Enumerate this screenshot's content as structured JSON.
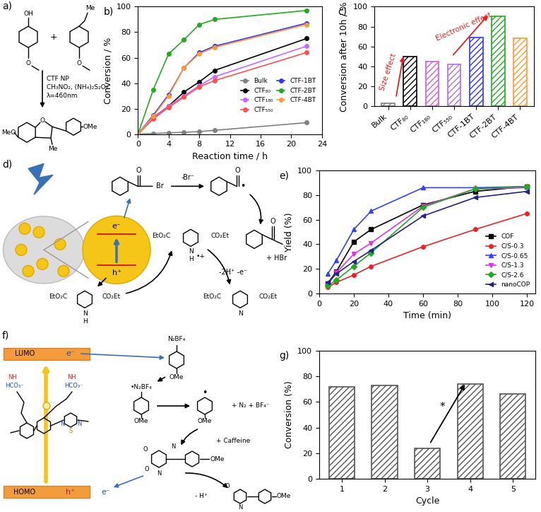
{
  "schemes": {
    "a": {
      "label": "a)",
      "texts": [
        "OH",
        "O",
        "+",
        "Me",
        "O",
        "CTF NP",
        "CH₃NO₂, (NH₄)₂S₂O₈",
        "λ=460nm",
        "MeO",
        "O",
        "OMe",
        "Me"
      ]
    },
    "d": {
      "label": "d)",
      "texts": [
        "O",
        "Br",
        "-Br⁻",
        "O",
        "•",
        "O",
        "+ HBr",
        "e⁻",
        "h⁺",
        "EtO₂C",
        "CO₂Et",
        "N",
        "H",
        "EtO₂C",
        "CO₂Et",
        "N",
        "H",
        "•+",
        "-2H⁺ -e⁻",
        "EtO₂C",
        "CO₂Et",
        "N"
      ]
    },
    "f": {
      "label": "f)",
      "texts": [
        "LUMO",
        "e⁻",
        "HOMO",
        "h⁺",
        "e⁻",
        "N",
        "S",
        "N",
        "NH",
        "HCO₃⁻",
        "NH",
        "HCO₃⁻",
        "N₂BF₄",
        "OMe",
        "•N₂BF₄",
        "OMe",
        "•",
        "OMe",
        "+ N₂ + BF₄⁻",
        "+ Caffeine",
        "O",
        "N",
        "N",
        "O",
        "OMe",
        "- H⁺",
        "O",
        "N",
        "OMe"
      ]
    }
  },
  "chart_data": [
    {
      "type": "line",
      "title": "b)",
      "x_label": "Reaction time / h",
      "y_label": "Conversion / %",
      "x": [
        0,
        2,
        4,
        6,
        8,
        10,
        22
      ],
      "xlim": [
        0,
        24
      ],
      "xticks": [
        0,
        4,
        8,
        12,
        16,
        20,
        24
      ],
      "ylim": [
        0,
        100
      ],
      "yticks": [
        0,
        20,
        40,
        60,
        80,
        100
      ],
      "legend": "lower right",
      "series": [
        {
          "name": "Bulk",
          "color": "#808080",
          "marker": "circle",
          "line_style": "solid",
          "values": [
            0,
            0.5,
            1,
            1.5,
            2,
            3,
            9
          ]
        },
        {
          "name": "CTF₈₀",
          "color": "#000000",
          "marker": "circle",
          "line_style": "solid",
          "values": [
            0,
            13,
            22,
            33,
            41,
            50,
            75
          ]
        },
        {
          "name": "CTF₁₈₀",
          "color": "#cc66ff",
          "marker": "circle",
          "line_style": "solid",
          "values": [
            0,
            13,
            22,
            30,
            38,
            45,
            69
          ]
        },
        {
          "name": "CTF₅₅₀",
          "color": "#ff5050",
          "marker": "circle",
          "line_style": "solid",
          "values": [
            0,
            12,
            21,
            29,
            37,
            42,
            64
          ]
        },
        {
          "name": "CTF-1BT",
          "color": "#3333ff",
          "marker": "circle",
          "line_style": "solid",
          "values": [
            0,
            15,
            31,
            52,
            64,
            69,
            87
          ]
        },
        {
          "name": "CTF-2BT",
          "color": "#22aa22",
          "marker": "circle",
          "line_style": "solid",
          "values": [
            0,
            35,
            63,
            74,
            86,
            90,
            97
          ]
        },
        {
          "name": "CTF-4BT",
          "color": "#ff9933",
          "marker": "circle",
          "line_style": "solid",
          "values": [
            0,
            14,
            30,
            52,
            63,
            68,
            86
          ]
        }
      ]
    },
    {
      "type": "bar",
      "title": "c)",
      "y_label": "Conversion after 10h / %",
      "categories": [
        "Bulk",
        "CTF₈₀",
        "CTF₁₈₀",
        "CTF₅₅₀",
        "CTF-1BT",
        "CTF-2BT",
        "CTF-4BT"
      ],
      "values": [
        3,
        50,
        45,
        42,
        69,
        90,
        68
      ],
      "colors": [
        "#808080",
        "#000000",
        "#d060d0",
        "#b070e0",
        "#3333ff",
        "#22aa22",
        "#ff9933"
      ],
      "ylim": [
        0,
        100
      ],
      "yticks": [
        0,
        20,
        40,
        60,
        80,
        100
      ],
      "annotations": [
        "Size effect",
        "Electronic effect"
      ]
    },
    {
      "type": "line",
      "title": "e)",
      "x_label": "Time (min)",
      "y_label": "Yield (%)",
      "x": [
        5,
        10,
        20,
        30,
        60,
        90,
        120
      ],
      "xlim": [
        0,
        125
      ],
      "xticks": [
        0,
        20,
        40,
        60,
        80,
        100,
        120
      ],
      "ylim": [
        0,
        100
      ],
      "yticks": [
        0,
        20,
        40,
        60,
        80,
        100
      ],
      "legend": "lower right",
      "series": [
        {
          "name": "COF",
          "color": "#000000",
          "marker": "square",
          "line_style": "solid",
          "values": [
            8,
            18,
            42,
            52,
            72,
            83,
            87
          ]
        },
        {
          "name": "C/S-0.3",
          "color": "#ee2222",
          "marker": "circle",
          "line_style": "solid",
          "values": [
            5,
            9,
            15,
            22,
            38,
            52,
            65
          ]
        },
        {
          "name": "C/S-0.65",
          "color": "#3344ee",
          "marker": "triangle_up",
          "line_style": "solid",
          "values": [
            16,
            27,
            52,
            67,
            86,
            86,
            87
          ]
        },
        {
          "name": "C/S-1.3",
          "color": "#dd33dd",
          "marker": "triangle_down",
          "line_style": "solid",
          "values": [
            7,
            17,
            32,
            41,
            71,
            85,
            86
          ]
        },
        {
          "name": "C/S-2.6",
          "color": "#22aa22",
          "marker": "diamond",
          "line_style": "solid",
          "values": [
            6,
            11,
            22,
            33,
            70,
            85,
            87
          ]
        },
        {
          "name": "nanoCOP",
          "color": "#222288",
          "marker": "triangle_left",
          "line_style": "solid",
          "values": [
            9,
            16,
            26,
            35,
            63,
            78,
            83
          ]
        }
      ]
    },
    {
      "type": "bar",
      "title": "g)",
      "x_label": "Cycle",
      "y_label": "Conversion (%)",
      "categories": [
        "1",
        "2",
        "3",
        "4",
        "5"
      ],
      "values": [
        72,
        73,
        24,
        74,
        66
      ],
      "color": "#555555",
      "ylim": [
        0,
        100
      ],
      "yticks": [
        0,
        20,
        40,
        60,
        80,
        100
      ],
      "annotations": [
        "*"
      ]
    }
  ]
}
